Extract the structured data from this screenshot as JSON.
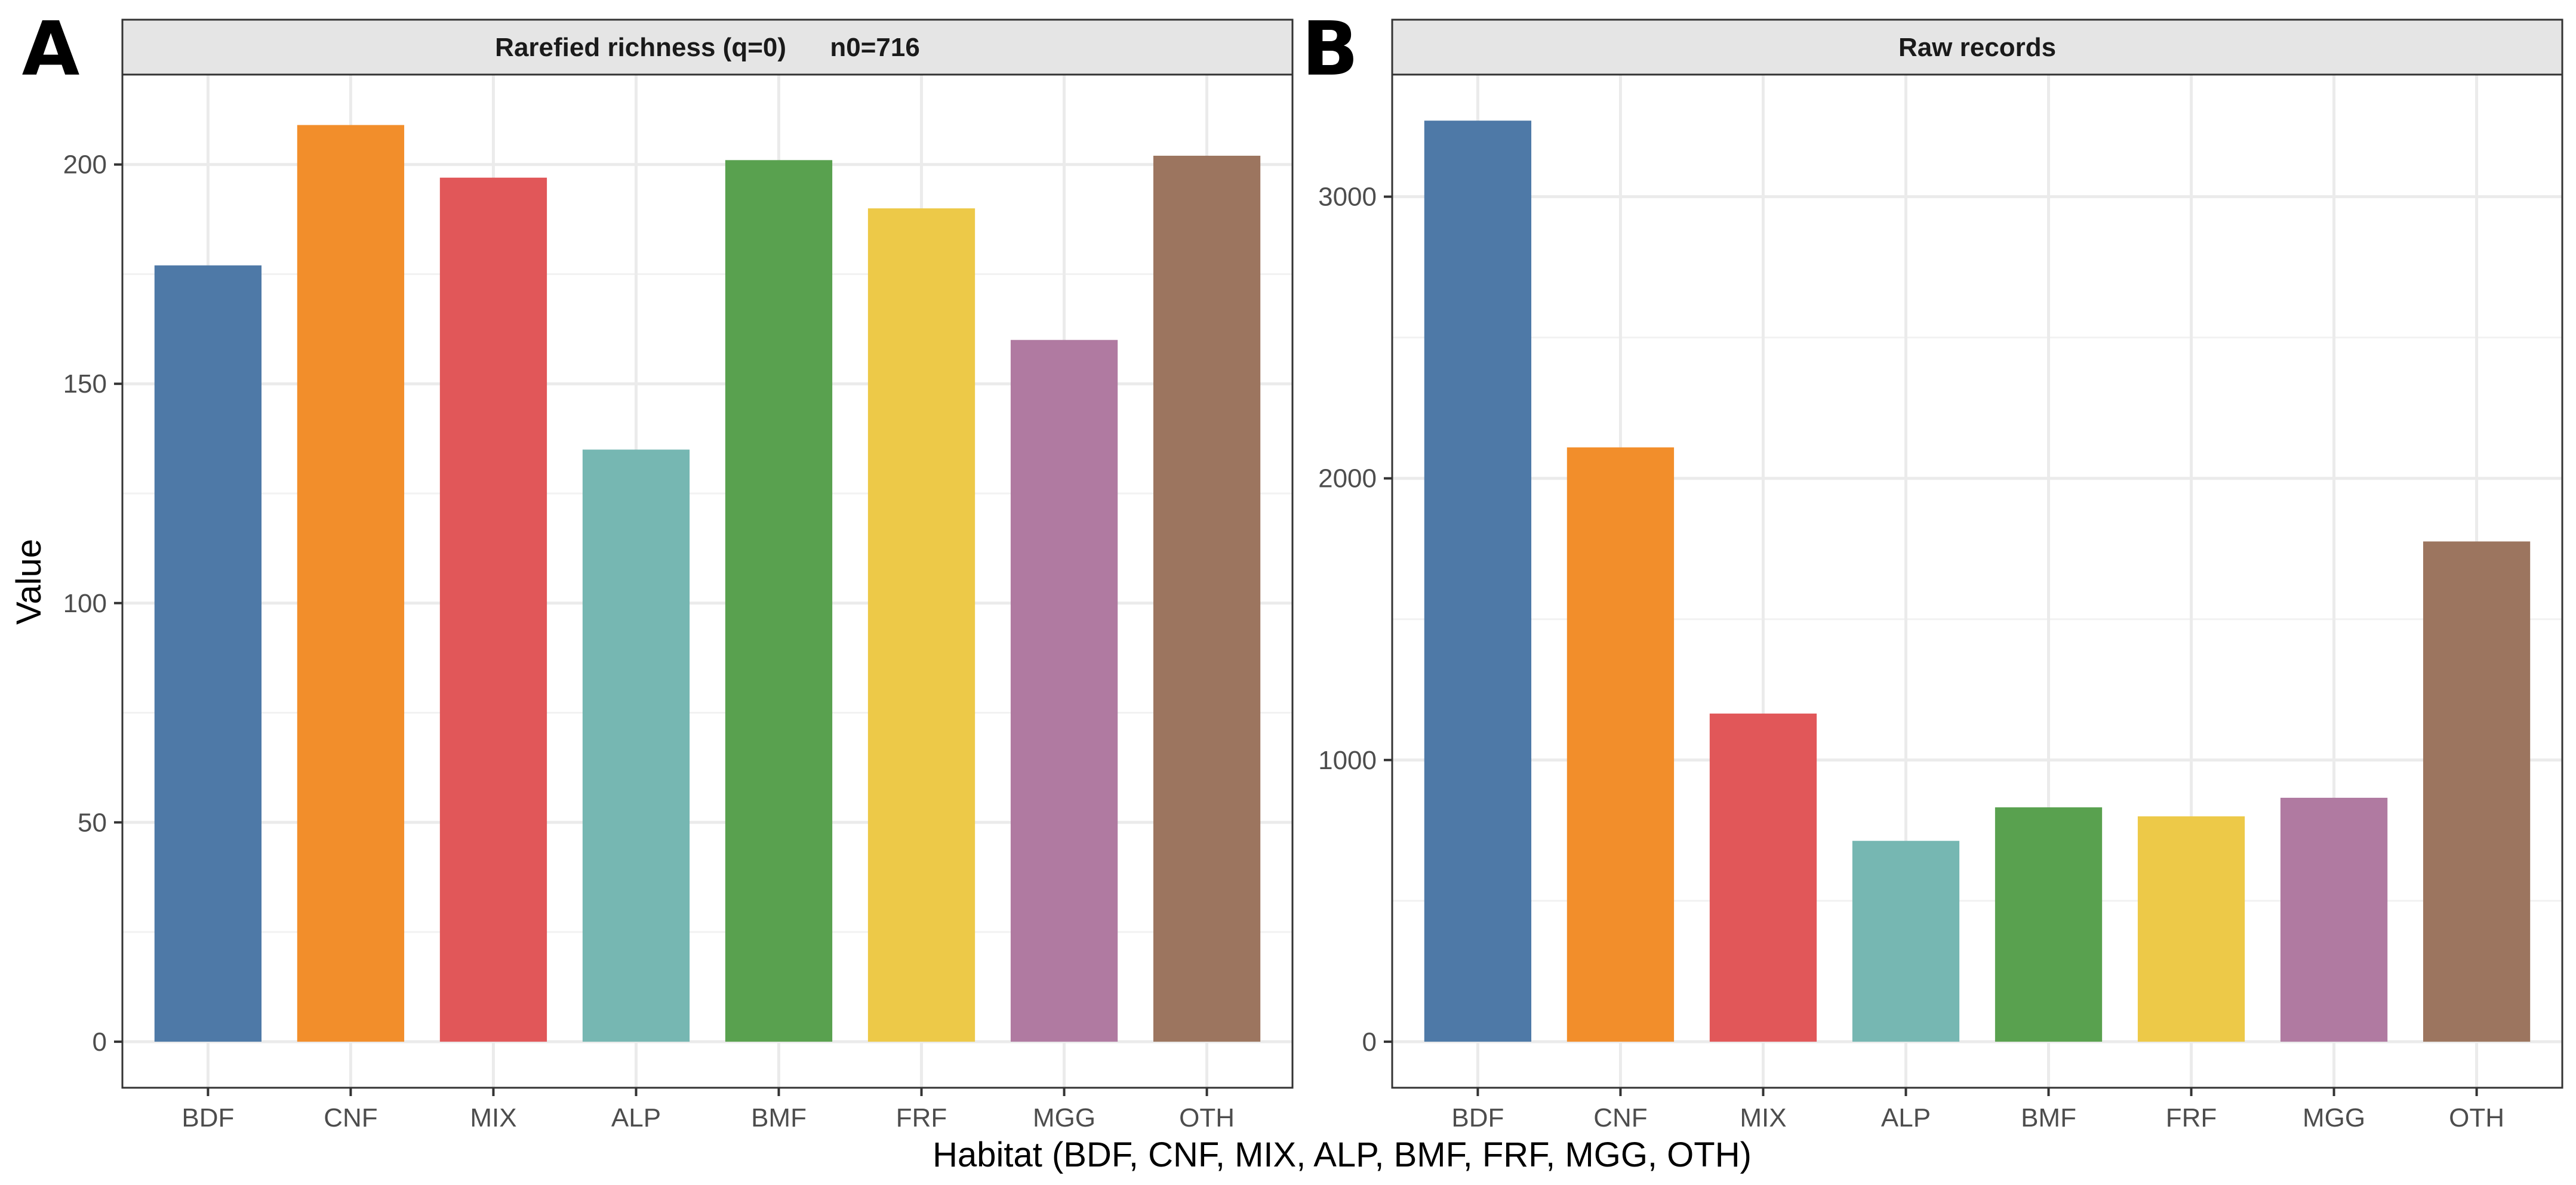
{
  "figure": {
    "xlabel": "Habitat (BDF, CNF, MIX, ALP, BMF, FRF, MGG, OTH)",
    "ylabel": "Value"
  },
  "chart_data": [
    {
      "type": "bar",
      "panel_letter": "A",
      "title": "Rarefied richness (q=0)      n0=716",
      "categories": [
        "BDF",
        "CNF",
        "MIX",
        "ALP",
        "BMF",
        "FRF",
        "MGG",
        "OTH"
      ],
      "values": [
        177,
        209,
        197,
        135,
        201,
        190,
        160,
        202
      ],
      "colors": [
        "#4e79a7",
        "#f28e2b",
        "#e15759",
        "#76b7b2",
        "#59a14f",
        "#edc948",
        "#b07aa1",
        "#9c755f"
      ],
      "ylim": [
        -10.5,
        220.5
      ],
      "yticks": [
        0,
        50,
        100,
        150,
        200
      ],
      "ytick_labels": [
        "0",
        "50",
        "100",
        "150",
        "200"
      ],
      "xlabel": "Habitat (BDF, CNF, MIX, ALP, BMF, FRF, MGG, OTH)",
      "ylabel": "Value",
      "grid": true
    },
    {
      "type": "bar",
      "panel_letter": "B",
      "title": "Raw records",
      "categories": [
        "BDF",
        "CNF",
        "MIX",
        "ALP",
        "BMF",
        "FRF",
        "MGG",
        "OTH"
      ],
      "values": [
        3270,
        2110,
        1165,
        713,
        832,
        800,
        866,
        1776
      ],
      "colors": [
        "#4e79a7",
        "#f28e2b",
        "#e15759",
        "#76b7b2",
        "#59a14f",
        "#edc948",
        "#b07aa1",
        "#9c755f"
      ],
      "ylim": [
        -163.5,
        3433.5
      ],
      "yticks": [
        0,
        1000,
        2000,
        3000
      ],
      "ytick_labels": [
        "0",
        "1000",
        "2000",
        "3000"
      ],
      "xlabel": "Habitat (BDF, CNF, MIX, ALP, BMF, FRF, MGG, OTH)",
      "ylabel": "",
      "grid": true
    }
  ]
}
